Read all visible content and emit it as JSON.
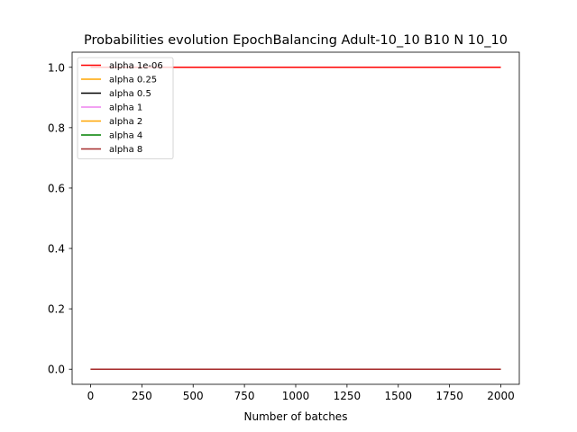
{
  "chart_data": {
    "type": "line",
    "title": "Probabilities evolution EpochBalancing Adult-10_10 B10 N 10_10",
    "xlabel": "Number of batches",
    "ylabel": "",
    "xlim": [
      -90,
      2090
    ],
    "ylim": [
      -0.05,
      1.05
    ],
    "xticks": [
      0,
      250,
      500,
      750,
      1000,
      1250,
      1500,
      1750,
      2000
    ],
    "xtick_labels": [
      "0",
      "250",
      "500",
      "750",
      "1000",
      "1250",
      "1500",
      "1750",
      "2000"
    ],
    "yticks": [
      0.0,
      0.2,
      0.4,
      0.6,
      0.8,
      1.0
    ],
    "ytick_labels": [
      "0.0",
      "0.2",
      "0.4",
      "0.6",
      "0.8",
      "1.0"
    ],
    "grid": false,
    "legend_position": "top-left",
    "series": [
      {
        "name": "alpha 1e-06",
        "color": "#ff0000",
        "x": [
          0,
          2000
        ],
        "y": [
          1.0,
          1.0
        ]
      },
      {
        "name": "alpha 0.25",
        "color": "#ffa500",
        "x": [
          0,
          2000
        ],
        "y": [
          0.0,
          0.0
        ]
      },
      {
        "name": "alpha 0.5",
        "color": "#000000",
        "x": [
          0,
          2000
        ],
        "y": [
          0.0,
          0.0
        ]
      },
      {
        "name": "alpha 1",
        "color": "#ee82ee",
        "x": [
          0,
          2000
        ],
        "y": [
          0.0,
          0.0
        ]
      },
      {
        "name": "alpha 2",
        "color": "#ffa500",
        "x": [
          0,
          2000
        ],
        "y": [
          0.0,
          0.0
        ]
      },
      {
        "name": "alpha 4",
        "color": "#008000",
        "x": [
          0,
          2000
        ],
        "y": [
          0.0,
          0.0
        ]
      },
      {
        "name": "alpha 8",
        "color": "#a52a2a",
        "x": [
          0,
          2000
        ],
        "y": [
          0.0,
          0.0
        ]
      }
    ]
  }
}
